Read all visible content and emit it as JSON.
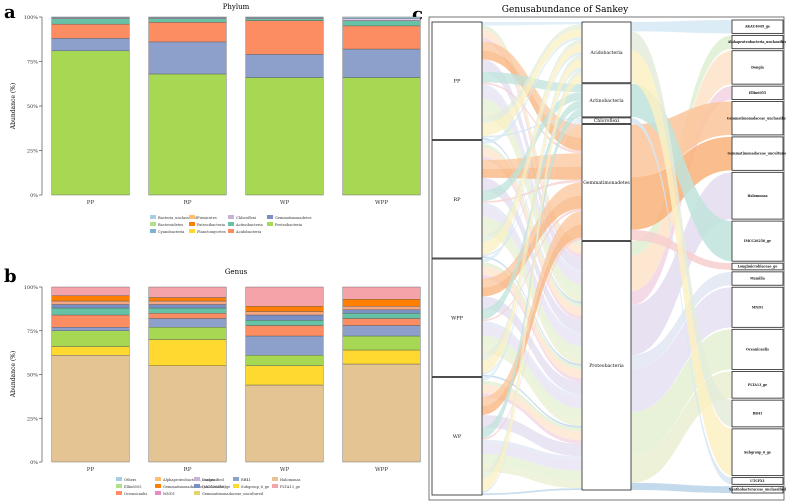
{
  "panel_labels": {
    "a": "a",
    "b": "b",
    "c": "c"
  },
  "chart_data": [
    {
      "type": "bar",
      "stacked": true,
      "title": "Phylum",
      "ylabel": "Abundance (%)",
      "xlabel": "",
      "ylim": [
        0,
        100
      ],
      "yticks": [
        "0%",
        "25%",
        "50%",
        "75%",
        "100%"
      ],
      "categories": [
        "PP",
        "RP",
        "WP",
        "WPP"
      ],
      "series": [
        {
          "name": "Proteobacteria",
          "color": "#a6d854",
          "values": [
            81,
            68,
            66,
            66
          ]
        },
        {
          "name": "Gemmatimonadetes",
          "color": "#8da0cb",
          "values": [
            7,
            18,
            13,
            16
          ]
        },
        {
          "name": "Acidobacteria",
          "color": "#fc8d62",
          "values": [
            8,
            11,
            19,
            13
          ]
        },
        {
          "name": "Actinobacteria",
          "color": "#66c2a5",
          "values": [
            3,
            2,
            1,
            3
          ]
        },
        {
          "name": "Chloroflexi",
          "color": "#e5c4f0",
          "values": [
            0.5,
            0.5,
            0.5,
            1
          ]
        },
        {
          "name": "Bacteria_unclassified",
          "color": "#a6cee3",
          "values": [
            0.5,
            0.5,
            0.5,
            1
          ]
        }
      ],
      "legend": [
        {
          "name": "Bacteria_unclassified",
          "color": "#a6cee3"
        },
        {
          "name": "Firmicutes",
          "color": "#fdbf6f"
        },
        {
          "name": "Chloroflexi",
          "color": "#cab2d6"
        },
        {
          "name": "Gemmatimonadetes",
          "color": "#7b8fc7"
        },
        {
          "name": "Bacteroidetes",
          "color": "#b2df8a"
        },
        {
          "name": "Patescibacteria",
          "color": "#ff7f00"
        },
        {
          "name": "Actinobacteria",
          "color": "#66c2a5"
        },
        {
          "name": "Proteobacteria",
          "color": "#a6d854"
        },
        {
          "name": "Cyanobacteria",
          "color": "#80b1d3"
        },
        {
          "name": "Planctomycetes",
          "color": "#ffd92f"
        },
        {
          "name": "Acidobacteria",
          "color": "#fc8d62"
        }
      ]
    },
    {
      "type": "bar",
      "stacked": true,
      "title": "Genus",
      "ylabel": "Abundance (%)",
      "xlabel": "",
      "ylim": [
        0,
        100
      ],
      "yticks": [
        "0%",
        "25%",
        "50%",
        "75%",
        "100%"
      ],
      "categories": [
        "PP",
        "RP",
        "WP",
        "WPP"
      ],
      "series": [
        {
          "name": "Halomonas",
          "color": "#e5c494",
          "values": [
            61,
            55,
            44,
            56
          ]
        },
        {
          "name": "Subgroup_6_ge",
          "color": "#ffd92f",
          "values": [
            5,
            15,
            11,
            8
          ]
        },
        {
          "name": "RB41",
          "color": "#a6d854",
          "values": [
            9,
            7,
            6,
            8
          ]
        },
        {
          "name": "MND1",
          "color": "#8da0cb",
          "values": [
            2,
            5,
            11,
            6
          ]
        },
        {
          "name": "Oceanicaulis",
          "color": "#fc8d62",
          "values": [
            7,
            3,
            6,
            4
          ]
        },
        {
          "name": "Gemmatimonadaceae_uncultured",
          "color": "#66c2a5",
          "values": [
            4,
            3,
            3,
            3
          ]
        },
        {
          "name": "IMCC26256_ge",
          "color": "#7b8fc7",
          "values": [
            2,
            2,
            3,
            2
          ]
        },
        {
          "name": "PLTA13_ge",
          "color": "#f4a582",
          "values": [
            2,
            2,
            2,
            2
          ]
        },
        {
          "name": "Gemmatimonadaceae_unclassified",
          "color": "#ff7f00",
          "values": [
            3,
            2,
            3,
            4
          ]
        },
        {
          "name": "Others",
          "color": "#f4a3a8",
          "values": [
            5,
            6,
            11,
            7
          ]
        }
      ],
      "legend": [
        {
          "name": "Others",
          "color": "#a6cee3"
        },
        {
          "name": "Alphaproteobacteria_unclassified",
          "color": "#fdbf6f"
        },
        {
          "name": "Dongia",
          "color": "#cab2d6"
        },
        {
          "name": "RB41",
          "color": "#8da0cb"
        },
        {
          "name": "Halomonas",
          "color": "#e5c494"
        },
        {
          "name": "Ellin6055",
          "color": "#b2df8a"
        },
        {
          "name": "Gemmatimonadaceae_unclassified",
          "color": "#ff7f00"
        },
        {
          "name": "IMCC26256_ge",
          "color": "#7b8fc7"
        },
        {
          "name": "Subgroup_6_ge",
          "color": "#ffd92f"
        },
        {
          "name": "PLTA13_ge",
          "color": "#f4a3a8"
        },
        {
          "name": "Oceanicaulis",
          "color": "#fc8d62"
        },
        {
          "name": "MND1",
          "color": "#e78ac3"
        },
        {
          "name": "Gemmatimonadaceae_uncultured",
          "color": "#e5d36b"
        }
      ]
    },
    {
      "type": "sankey",
      "title": "Genusabundance of Sankey",
      "sources": [
        {
          "name": "PP",
          "weight": 1
        },
        {
          "name": "RP",
          "weight": 1
        },
        {
          "name": "WPP",
          "weight": 1
        },
        {
          "name": "WP",
          "weight": 1
        }
      ],
      "phyla": [
        {
          "name": "Acidobacteria",
          "weight": 11
        },
        {
          "name": "Actinobacteria",
          "weight": 6
        },
        {
          "name": "Chloroflexi",
          "weight": 1
        },
        {
          "name": "Gemmatimonadetes",
          "weight": 21
        },
        {
          "name": "Proteobacteria",
          "weight": 45
        }
      ],
      "genera": [
        {
          "name": "AKAU4049_ge",
          "color": "#d6e9f5",
          "weight": 2,
          "phylum": "Acidobacteria"
        },
        {
          "name": "Alphaproteobacteria_unclassified",
          "color": "#dfeed2",
          "weight": 2,
          "phylum": "Proteobacteria"
        },
        {
          "name": "Dongia",
          "color": "#fde3c8",
          "weight": 5,
          "phylum": "Proteobacteria"
        },
        {
          "name": "Ellin6055",
          "color": "#f2d3e3",
          "weight": 2,
          "phylum": "Proteobacteria"
        },
        {
          "name": "Gemmatimonadaceae_unclassified",
          "color": "#fbc49a",
          "weight": 5,
          "phylum": "Gemmatimonadetes"
        },
        {
          "name": "Gemmatimonadaceae_uncultured",
          "color": "#f9b27a",
          "weight": 5,
          "phylum": "Gemmatimonadetes"
        },
        {
          "name": "Halomonas",
          "color": "#e3dcef",
          "weight": 7,
          "phylum": "Proteobacteria"
        },
        {
          "name": "IMCC26256_ge",
          "color": "#bfe3dc",
          "weight": 6,
          "phylum": "Actinobacteria"
        },
        {
          "name": "Longimicrobiaceae_ge",
          "color": "#f7cfcf",
          "weight": 1,
          "phylum": "Gemmatimonadetes"
        },
        {
          "name": "Mamilia",
          "color": "#e0e6f3",
          "weight": 2,
          "phylum": "Proteobacteria"
        },
        {
          "name": "MND1",
          "color": "#e6e0f2",
          "weight": 6,
          "phylum": "Proteobacteria"
        },
        {
          "name": "Oceanicaulis",
          "color": "#e3f0d2",
          "weight": 6,
          "phylum": "Proteobacteria"
        },
        {
          "name": "PLTA13_ge",
          "color": "#e9efd0",
          "weight": 4,
          "phylum": "Proteobacteria"
        },
        {
          "name": "RB41",
          "color": "#e4ecda",
          "weight": 4,
          "phylum": "Acidobacteria"
        },
        {
          "name": "Subgroup_6_ge",
          "color": "#fbf0c2",
          "weight": 7,
          "phylum": "Acidobacteria"
        },
        {
          "name": "UTCFX1",
          "color": "#d7e6f3",
          "weight": 1,
          "phylum": "Chloroflexi"
        },
        {
          "name": "Xanthobacteraceae_unclassified",
          "color": "#b9d3ea",
          "weight": 1,
          "phylum": "Proteobacteria"
        }
      ]
    }
  ]
}
